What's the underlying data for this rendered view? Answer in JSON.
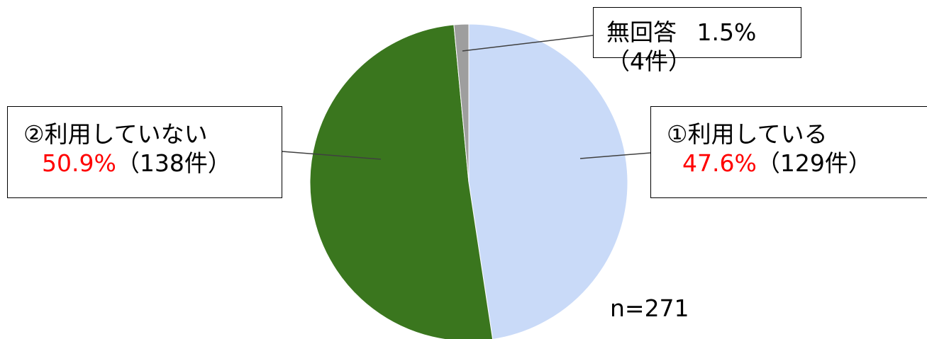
{
  "chart_data": {
    "type": "pie",
    "total_label": "n=271",
    "slices": [
      {
        "name": "①利用している",
        "percent": 47.6,
        "percent_label": "47.6%",
        "count_label": "（129件）",
        "count": 129,
        "color": "#c9daf8"
      },
      {
        "name": "②利用していない",
        "percent": 50.9,
        "percent_label": "50.9%",
        "count_label": "（138件）",
        "count": 138,
        "color": "#3a761e"
      },
      {
        "name": "無回答",
        "percent": 1.5,
        "percent_label": "1.5%",
        "count_label": "（4件）",
        "count": 4,
        "color": "#9e9e9e"
      }
    ]
  }
}
